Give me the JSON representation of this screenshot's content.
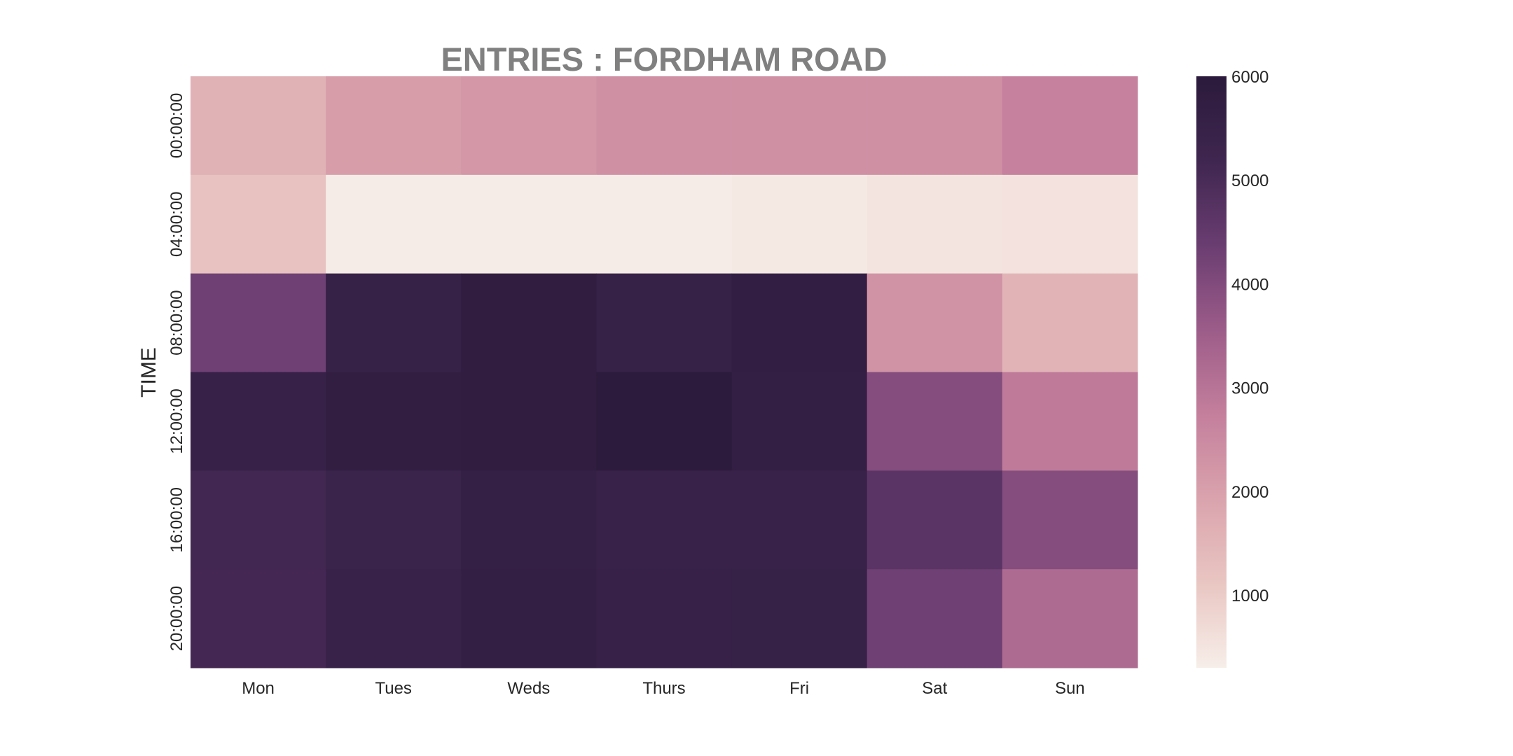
{
  "chart_data": {
    "type": "heatmap",
    "title": "ENTRIES : FORDHAM ROAD",
    "xlabel": "",
    "ylabel": "TIME",
    "x_categories": [
      "Mon",
      "Tues",
      "Weds",
      "Thurs",
      "Fri",
      "Sat",
      "Sun"
    ],
    "y_categories": [
      "00:00:00",
      "04:00:00",
      "08:00:00",
      "12:00:00",
      "16:00:00",
      "20:00:00"
    ],
    "values": [
      [
        1600,
        2050,
        2200,
        2350,
        2350,
        2350,
        2700
      ],
      [
        1200,
        350,
        350,
        350,
        400,
        500,
        550
      ],
      [
        4300,
        5550,
        5800,
        5550,
        5700,
        2300,
        1550
      ],
      [
        5500,
        5750,
        5800,
        5950,
        5650,
        3950,
        2850
      ],
      [
        5150,
        5350,
        5600,
        5450,
        5450,
        4700,
        3950
      ],
      [
        5100,
        5450,
        5650,
        5500,
        5550,
        4300,
        3200
      ]
    ],
    "colorbar": {
      "min": 300,
      "max": 6000,
      "ticks": [
        "1000",
        "2000",
        "3000",
        "4000",
        "5000",
        "6000"
      ],
      "colors": [
        "#f7eee9",
        "#e9c6c2",
        "#daa3ad",
        "#c47f9c",
        "#9c5c89",
        "#6a3d71",
        "#3f2650",
        "#2b1a3b"
      ]
    }
  }
}
